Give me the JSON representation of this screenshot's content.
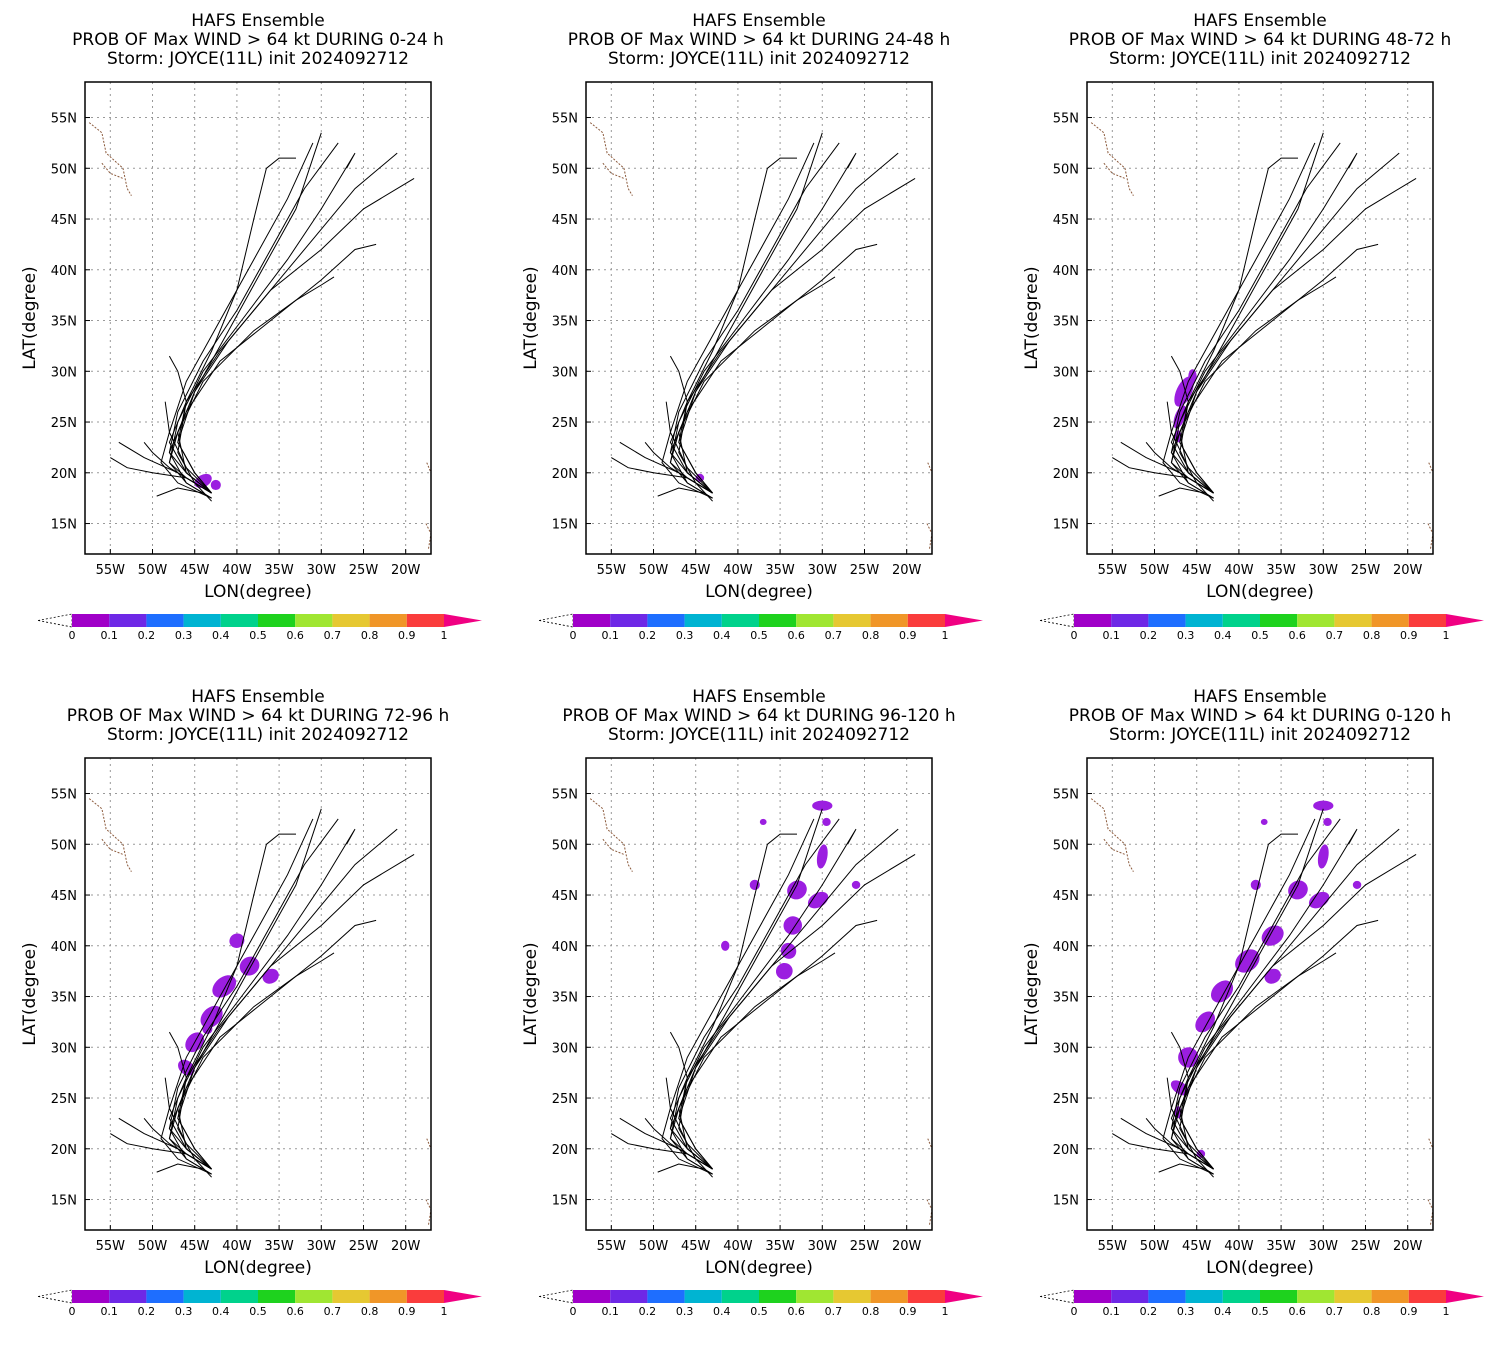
{
  "figure": {
    "panels": [
      {
        "line1": "HAFS Ensemble",
        "line2": "PROB OF Max WIND > 64 kt DURING  0-24 h",
        "line3": "Storm: JOYCE(11L) init 2024092712"
      },
      {
        "line1": "HAFS Ensemble",
        "line2": "PROB OF Max WIND > 64 kt DURING 24-48 h",
        "line3": "Storm: JOYCE(11L) init 2024092712"
      },
      {
        "line1": "HAFS Ensemble",
        "line2": "PROB OF Max WIND > 64 kt DURING 48-72 h",
        "line3": "Storm: JOYCE(11L) init 2024092712"
      },
      {
        "line1": "HAFS Ensemble",
        "line2": "PROB OF Max WIND > 64 kt DURING 72-96 h",
        "line3": "Storm: JOYCE(11L) init 2024092712"
      },
      {
        "line1": "HAFS Ensemble",
        "line2": "PROB OF Max WIND > 64 kt DURING 96-120 h",
        "line3": "Storm: JOYCE(11L) init 2024092712"
      },
      {
        "line1": "HAFS Ensemble",
        "line2": "PROB OF Max WIND > 64 kt DURING 0-120 h",
        "line3": "Storm: JOYCE(11L) init 2024092712"
      }
    ],
    "xlabel": "LON(degree)",
    "ylabel": "LAT(degree)",
    "lon_ticks": [
      "55W",
      "50W",
      "45W",
      "40W",
      "35W",
      "30W",
      "25W",
      "20W"
    ],
    "lat_ticks": [
      "55N",
      "50N",
      "45N",
      "40N",
      "35N",
      "30N",
      "25N",
      "20N",
      "15N"
    ],
    "colorbar": {
      "labels": [
        "0",
        "0.1",
        "0.2",
        "0.3",
        "0.4",
        "0.5",
        "0.6",
        "0.7",
        "0.8",
        "0.9",
        "1"
      ],
      "colors": [
        "#a000c8",
        "#6e28e6",
        "#1e6eff",
        "#00b4d2",
        "#00d28c",
        "#1ed21e",
        "#a0e632",
        "#e6c832",
        "#f09628",
        "#fa3c3c",
        "#f00082"
      ]
    },
    "shading_color": "#9b1ee0",
    "track_color": "#000000",
    "coast_color": "#8b5a3c"
  },
  "chart_data": {
    "type": "map",
    "lon_range": [
      -58,
      -17
    ],
    "lat_range": [
      12,
      58.5
    ],
    "grid": true,
    "tracks": [
      [
        [
          -43,
          18
        ],
        [
          -45,
          19
        ],
        [
          -48,
          20.5
        ],
        [
          -50,
          22
        ],
        [
          -51,
          23
        ]
      ],
      [
        [
          -43,
          18
        ],
        [
          -46,
          19.5
        ],
        [
          -48,
          21
        ],
        [
          -47,
          24
        ],
        [
          -45,
          28
        ],
        [
          -41,
          34
        ],
        [
          -37,
          40
        ],
        [
          -33,
          46
        ],
        [
          -30,
          53.5
        ]
      ],
      [
        [
          -43,
          18
        ],
        [
          -46,
          20
        ],
        [
          -48,
          22
        ],
        [
          -47,
          26
        ],
        [
          -44,
          31
        ],
        [
          -40,
          36
        ],
        [
          -36,
          42
        ],
        [
          -32,
          48
        ],
        [
          -28,
          52.5
        ]
      ],
      [
        [
          -43,
          17.5
        ],
        [
          -46,
          19
        ],
        [
          -48,
          21
        ],
        [
          -47,
          25
        ],
        [
          -44,
          30
        ],
        [
          -39,
          35.5
        ],
        [
          -34,
          41
        ],
        [
          -30,
          46
        ],
        [
          -26,
          51.5
        ],
        [
          -27,
          50
        ]
      ],
      [
        [
          -43,
          18
        ],
        [
          -46,
          20
        ],
        [
          -48,
          23
        ],
        [
          -46,
          27
        ],
        [
          -42,
          32
        ],
        [
          -37,
          37
        ],
        [
          -31,
          43
        ],
        [
          -26,
          48
        ],
        [
          -21,
          51.5
        ]
      ],
      [
        [
          -43,
          18
        ],
        [
          -45,
          20
        ],
        [
          -47,
          23
        ],
        [
          -45,
          28
        ],
        [
          -41,
          33
        ],
        [
          -36,
          38
        ],
        [
          -30,
          42
        ],
        [
          -25,
          46
        ],
        [
          -19,
          49
        ]
      ],
      [
        [
          -43,
          17.5
        ],
        [
          -46,
          19
        ],
        [
          -48,
          22
        ],
        [
          -46,
          26
        ],
        [
          -42,
          31
        ],
        [
          -36,
          35
        ],
        [
          -30,
          39
        ],
        [
          -26,
          42
        ],
        [
          -23.5,
          42.5
        ]
      ],
      [
        [
          -43,
          18
        ],
        [
          -46,
          20
        ],
        [
          -47,
          24
        ],
        [
          -44,
          29
        ],
        [
          -38,
          34
        ],
        [
          -33,
          37
        ],
        [
          -30,
          38.5
        ],
        [
          -28.5,
          39.3
        ]
      ],
      [
        [
          -43,
          18
        ],
        [
          -45,
          20
        ],
        [
          -47,
          23
        ],
        [
          -46,
          27
        ],
        [
          -43,
          32
        ],
        [
          -40,
          38
        ],
        [
          -38,
          45
        ],
        [
          -36.5,
          50
        ],
        [
          -35,
          51
        ],
        [
          -33,
          51
        ]
      ],
      [
        [
          -43,
          17.5
        ],
        [
          -47,
          19
        ],
        [
          -49,
          21
        ],
        [
          -48,
          24
        ],
        [
          -46,
          29
        ],
        [
          -42,
          35
        ],
        [
          -38,
          41
        ],
        [
          -34,
          47
        ],
        [
          -31,
          52.5
        ]
      ],
      [
        [
          -43,
          17.2
        ],
        [
          -45,
          19
        ],
        [
          -47,
          22
        ],
        [
          -46,
          27
        ],
        [
          -47,
          30
        ],
        [
          -48,
          31.5
        ]
      ],
      [
        [
          -43,
          18
        ],
        [
          -46,
          19.5
        ],
        [
          -50,
          20
        ],
        [
          -53,
          20.5
        ],
        [
          -55,
          21.5
        ]
      ],
      [
        [
          -44,
          18
        ],
        [
          -47,
          18.5
        ],
        [
          -49.5,
          17.7
        ]
      ],
      [
        [
          -43,
          18
        ],
        [
          -47,
          20
        ],
        [
          -51,
          21.5
        ],
        [
          -54,
          23
        ]
      ],
      [
        [
          -43,
          18
        ],
        [
          -46,
          20.5
        ],
        [
          -48,
          24
        ],
        [
          -48.5,
          27
        ]
      ]
    ],
    "coast_segments": [
      [
        [
          -57.5,
          54.5
        ],
        [
          -56,
          53.5
        ],
        [
          -55.5,
          51.5
        ],
        [
          -53.5,
          50
        ],
        [
          -53,
          48
        ],
        [
          -52.5,
          47.3
        ]
      ],
      [
        [
          -56,
          50.5
        ],
        [
          -55,
          49.5
        ],
        [
          -53.5,
          49
        ]
      ],
      [
        [
          -17.5,
          21
        ],
        [
          -17,
          20
        ]
      ],
      [
        [
          -17.6,
          15
        ],
        [
          -17,
          14
        ],
        [
          -17.3,
          12.5
        ]
      ]
    ],
    "shading": [
      [],
      [],
      [],
      [],
      [],
      []
    ]
  }
}
